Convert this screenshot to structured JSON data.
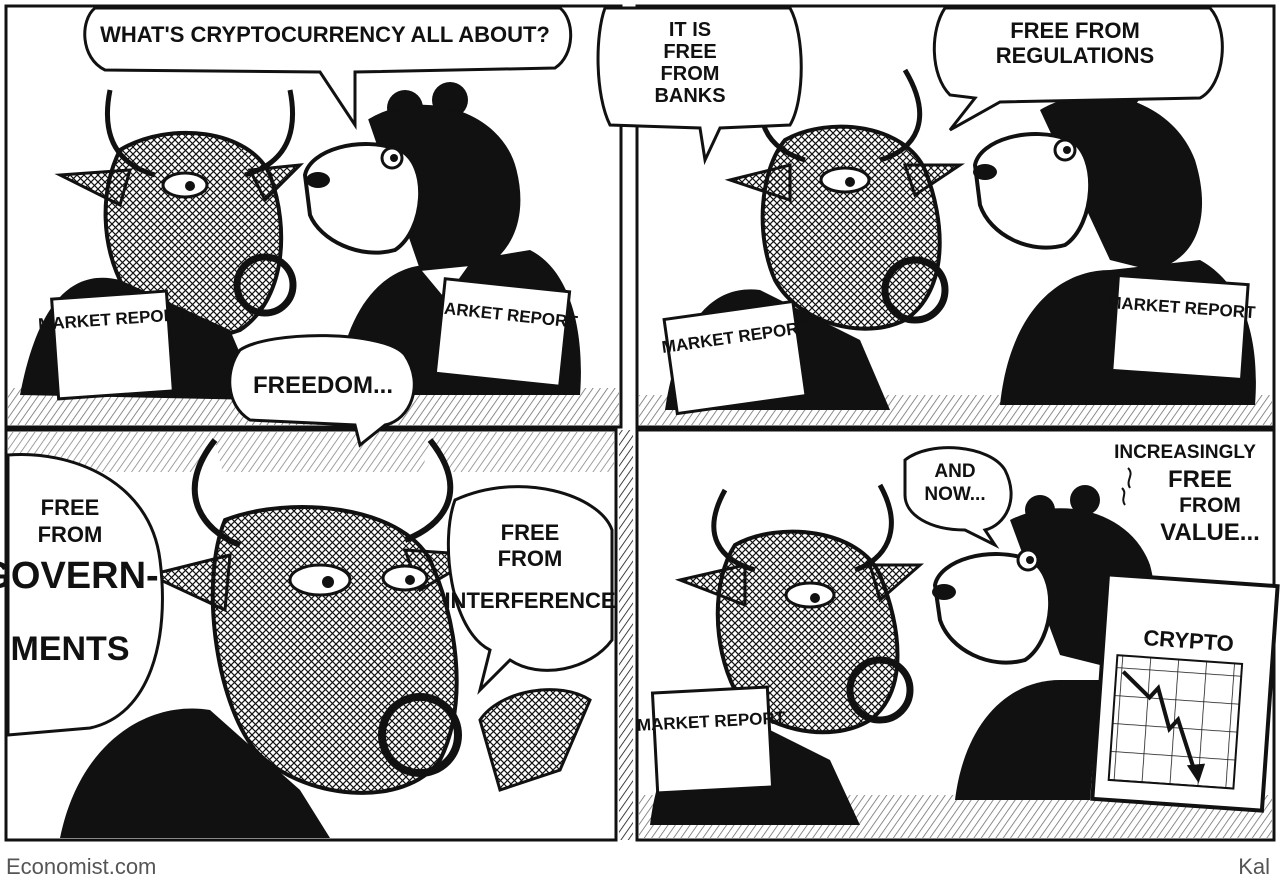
{
  "panels": [
    {
      "speech": [
        "WHAT'S CRYPTOCURRENCY ALL ABOUT?"
      ],
      "reports": [
        "MARKET REPORT",
        "MARKET REPORT"
      ],
      "lower_speech": [
        "FREEDOM..."
      ]
    },
    {
      "speech_left": [
        "IT IS",
        "FREE",
        "FROM",
        "BANKS"
      ],
      "speech_right": [
        "FREE FROM",
        "REGULATIONS"
      ],
      "reports": [
        "MARKET REPORT",
        "MARKET REPORT"
      ]
    },
    {
      "speech_left": [
        "FREE",
        "FROM",
        "GOVERN-",
        "MENTS"
      ],
      "speech_right": [
        "FREE",
        "FROM",
        "INTERFERENCE"
      ]
    },
    {
      "speech_left": [
        "AND",
        "NOW..."
      ],
      "caption_right": [
        "INCREASINGLY",
        "FREE",
        "FROM",
        "VALUE..."
      ],
      "chart_label": "CRYPTO",
      "reports": [
        "MARKET REPORT"
      ]
    }
  ],
  "credits": {
    "source": "Economist.com",
    "artist": "Kal"
  },
  "colors": {
    "ink": "#111111",
    "paper": "#ffffff",
    "bear_fur": "#1a1a1a"
  }
}
